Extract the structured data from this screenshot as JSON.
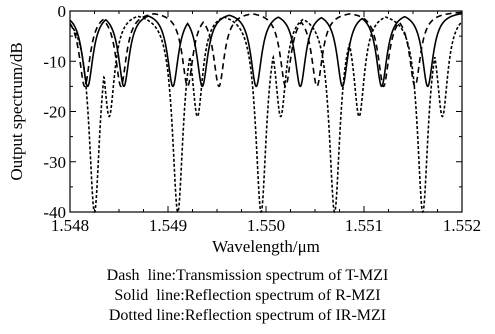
{
  "chart_data": {
    "type": "line",
    "xlabel": "Wavelength/μm",
    "ylabel": "Output spectrum/dB",
    "xlim": [
      1.548,
      1.552
    ],
    "ylim": [
      -40,
      0
    ],
    "xticks": [
      1.548,
      1.549,
      1.55,
      1.551,
      1.552
    ],
    "xtick_labels": [
      "1.548",
      "1.549",
      "1.550",
      "1.551",
      "1.552"
    ],
    "yticks": [
      0,
      -10,
      -20,
      -30,
      -40
    ],
    "ytick_labels": [
      "0",
      "-10",
      "-20",
      "-30",
      "-40"
    ],
    "grid": false,
    "series": [
      {
        "line_style": "dashed",
        "dips": [
          {
            "x": 1.54815,
            "y": -15
          },
          {
            "x": 1.54852,
            "y": -15
          },
          {
            "x": 1.5492,
            "y": -15
          },
          {
            "x": 1.54952,
            "y": -15
          },
          {
            "x": 1.5502,
            "y": -15
          },
          {
            "x": 1.55052,
            "y": -15
          },
          {
            "x": 1.5512,
            "y": -15
          },
          {
            "x": 1.55152,
            "y": -15
          }
        ]
      },
      {
        "line_style": "solid",
        "dips": [
          {
            "x": 1.54818,
            "y": -15
          },
          {
            "x": 1.54855,
            "y": -15
          },
          {
            "x": 1.54905,
            "y": -15
          },
          {
            "x": 1.54935,
            "y": -15
          },
          {
            "x": 1.5499,
            "y": -15
          },
          {
            "x": 1.55035,
            "y": -15
          },
          {
            "x": 1.55078,
            "y": -15
          },
          {
            "x": 1.55118,
            "y": -15
          },
          {
            "x": 1.55165,
            "y": -15
          }
        ]
      },
      {
        "line_style": "dotted",
        "dips": [
          {
            "x": 1.54825,
            "y": -40
          },
          {
            "x": 1.5484,
            "y": -21
          },
          {
            "x": 1.5491,
            "y": -40
          },
          {
            "x": 1.5493,
            "y": -21
          },
          {
            "x": 1.54995,
            "y": -40
          },
          {
            "x": 1.55015,
            "y": -21
          },
          {
            "x": 1.5507,
            "y": -40
          },
          {
            "x": 1.55095,
            "y": -21
          },
          {
            "x": 1.5516,
            "y": -40
          },
          {
            "x": 1.5518,
            "y": -21
          }
        ]
      }
    ]
  },
  "legend": [
    {
      "label": "Dash",
      "gap": "  ",
      "suffix": "line:Transmission spectrum of T-MZI"
    },
    {
      "label": "Solid",
      "gap": "  ",
      "suffix": "line:Reflection spectrum of R-MZI"
    },
    {
      "label": "Dotted",
      "gap": " ",
      "suffix": "line:Reflection spectrum of IR-MZI"
    }
  ]
}
